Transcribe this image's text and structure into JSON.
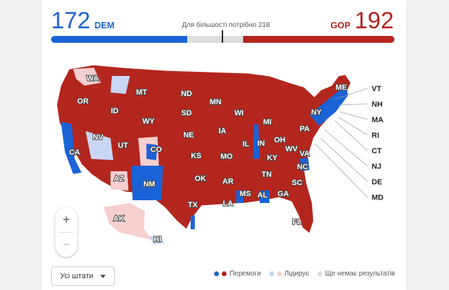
{
  "tally": {
    "dem": {
      "count": "172",
      "label": "DEM",
      "seats": 172
    },
    "gop": {
      "count": "192",
      "label": "GOP",
      "seats": 192
    },
    "majority_text": "Для більшості потрібно 218",
    "total_seats": 435
  },
  "colors": {
    "dem_win": "#1a63d6",
    "gop_win": "#b3261e",
    "dem_lead": "#c9d7f5",
    "gop_lead": "#f6cfcf",
    "no_result": "#dcdcdc"
  },
  "map": {
    "states": [
      "WA",
      "OR",
      "CA",
      "ID",
      "NV",
      "MT",
      "WY",
      "UT",
      "CO",
      "AZ",
      "NM",
      "ND",
      "SD",
      "NE",
      "KS",
      "OK",
      "TX",
      "MN",
      "IA",
      "MO",
      "AR",
      "LA",
      "WI",
      "IL",
      "MI",
      "IN",
      "OH",
      "KY",
      "TN",
      "MS",
      "AL",
      "GA",
      "FL",
      "SC",
      "NC",
      "VA",
      "WV",
      "PA",
      "NY",
      "ME",
      "AK",
      "HI"
    ],
    "northeast_labels": [
      "VT",
      "NH",
      "MA",
      "RI",
      "CT",
      "NJ",
      "DE",
      "MD"
    ]
  },
  "zoom": {
    "in": "+",
    "out": "−"
  },
  "filter": {
    "label": "Усі штати"
  },
  "legend": {
    "wins": "Перемоги",
    "leading": "Лідирує",
    "no_results": "Ще немає результатів"
  }
}
